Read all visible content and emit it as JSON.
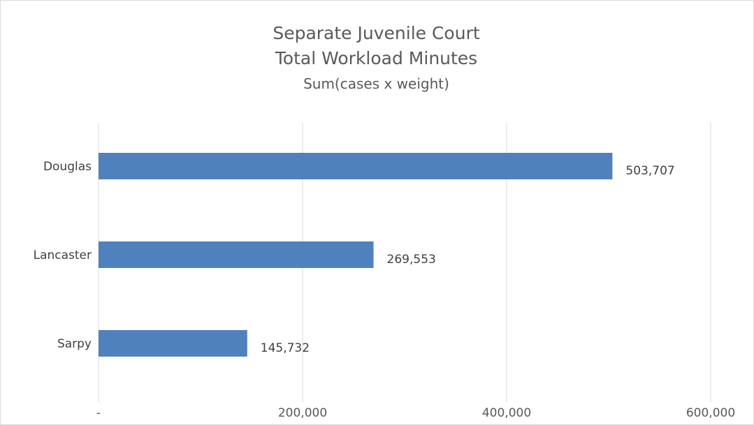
{
  "chart_data": {
    "type": "bar",
    "orientation": "horizontal",
    "title": "Separate Juvenile Court",
    "title_line2": "Total Workload Minutes",
    "subtitle": "Sum(cases x weight)",
    "categories": [
      "Douglas",
      "Lancaster",
      "Sarpy"
    ],
    "values": [
      503707,
      269553,
      145732
    ],
    "value_labels": [
      "503,707",
      "269,553",
      "145,732"
    ],
    "xlim": [
      0,
      600000
    ],
    "x_ticks": [
      0,
      200000,
      400000,
      600000
    ],
    "x_tick_labels": [
      "-",
      "200,000",
      "400,000",
      "600,000"
    ],
    "grid": true,
    "legend": "none",
    "bar_color": "#4f81bd",
    "grid_color": "#d9d9d9"
  }
}
